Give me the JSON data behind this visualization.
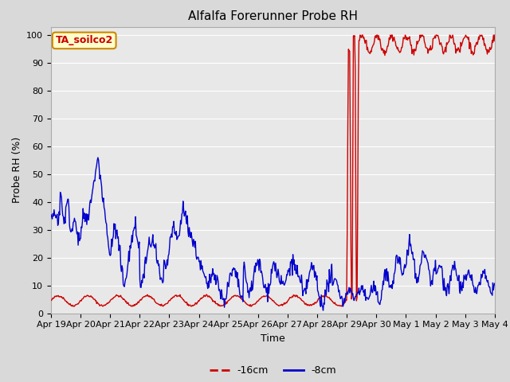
{
  "title": "Alfalfa Forerunner Probe RH",
  "ylabel": "Probe RH (%)",
  "xlabel": "Time",
  "subtitle_box": "TA_soilco2",
  "ylim": [
    0,
    103
  ],
  "yticks": [
    0,
    10,
    20,
    30,
    40,
    50,
    60,
    70,
    80,
    90,
    100
  ],
  "xtick_labels": [
    "Apr 19",
    "Apr 20",
    "Apr 21",
    "Apr 22",
    "Apr 23",
    "Apr 24",
    "Apr 25",
    "Apr 26",
    "Apr 27",
    "Apr 28",
    "Apr 29",
    "Apr 30",
    "May 1",
    "May 2",
    "May 3",
    "May 4"
  ],
  "background_color": "#d9d9d9",
  "plot_bg_color": "#e8e8e8",
  "line_16cm_color": "#cc0000",
  "line_8cm_color": "#0000cc",
  "legend_16cm": "-16cm",
  "legend_8cm": "-8cm",
  "title_fontsize": 11,
  "axis_label_fontsize": 9,
  "tick_fontsize": 8,
  "subtitle_box_facecolor": "#ffffcc",
  "subtitle_box_edgecolor": "#cc8800",
  "subtitle_box_textcolor": "#cc0000"
}
